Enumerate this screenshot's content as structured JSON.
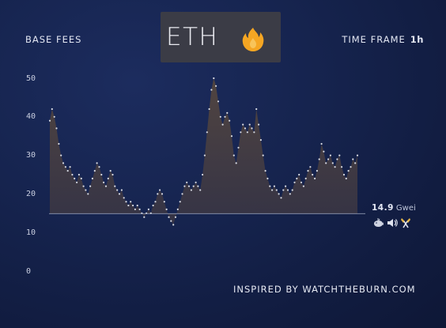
{
  "header": {
    "left_label": "BASE FEES",
    "coin": "ETH",
    "timeframe_label": "TIME FRAME",
    "timeframe_value": "1h"
  },
  "icons": {
    "coin_badge": "flame-icon",
    "controls": [
      "whale-icon",
      "speaker-icon",
      "tools-icon"
    ]
  },
  "fee": {
    "value": "14.9",
    "unit": "Gwei"
  },
  "footer": {
    "credit": "INSPIRED BY WATCHTHEBURN.COM"
  },
  "colors": {
    "background": "#14214b",
    "coin_box": "#3b3c46",
    "flame": "#f5a623",
    "series_fill": "#4a3f40",
    "points": "#d8dbe4",
    "baseline": "#aeb6cc"
  },
  "chart_data": {
    "type": "area",
    "title": "",
    "xlabel": "",
    "ylabel": "",
    "ylim": [
      0,
      50
    ],
    "yticks": [
      "50",
      "40",
      "30",
      "20",
      "10",
      "0"
    ],
    "current_value": 14.9,
    "grid": false,
    "series": [
      {
        "values": [
          39,
          42,
          40,
          37,
          33,
          30,
          28,
          27,
          26,
          27,
          25,
          24,
          23,
          25,
          24,
          22,
          21,
          20,
          22,
          24,
          26,
          28,
          27,
          25,
          23,
          22,
          24,
          26,
          25,
          22,
          21,
          20,
          21,
          19,
          18,
          17,
          18,
          17,
          16,
          17,
          16,
          15,
          14,
          15,
          16,
          15,
          17,
          18,
          20,
          21,
          20,
          18,
          16,
          14,
          13,
          12,
          14,
          16,
          18,
          20,
          22,
          23,
          22,
          21,
          22,
          23,
          22,
          21,
          25,
          30,
          36,
          42,
          47,
          50,
          48,
          44,
          40,
          38,
          40,
          41,
          39,
          35,
          30,
          28,
          32,
          36,
          38,
          37,
          36,
          38,
          37,
          36,
          42,
          38,
          34,
          30,
          26,
          24,
          22,
          21,
          22,
          21,
          20,
          19,
          21,
          22,
          21,
          20,
          21,
          23,
          24,
          25,
          23,
          22,
          24,
          26,
          27,
          25,
          24,
          26,
          29,
          33,
          31,
          28,
          29,
          30,
          28,
          27,
          29,
          30,
          27,
          25,
          24,
          26,
          27,
          29,
          28,
          30
        ]
      }
    ]
  }
}
